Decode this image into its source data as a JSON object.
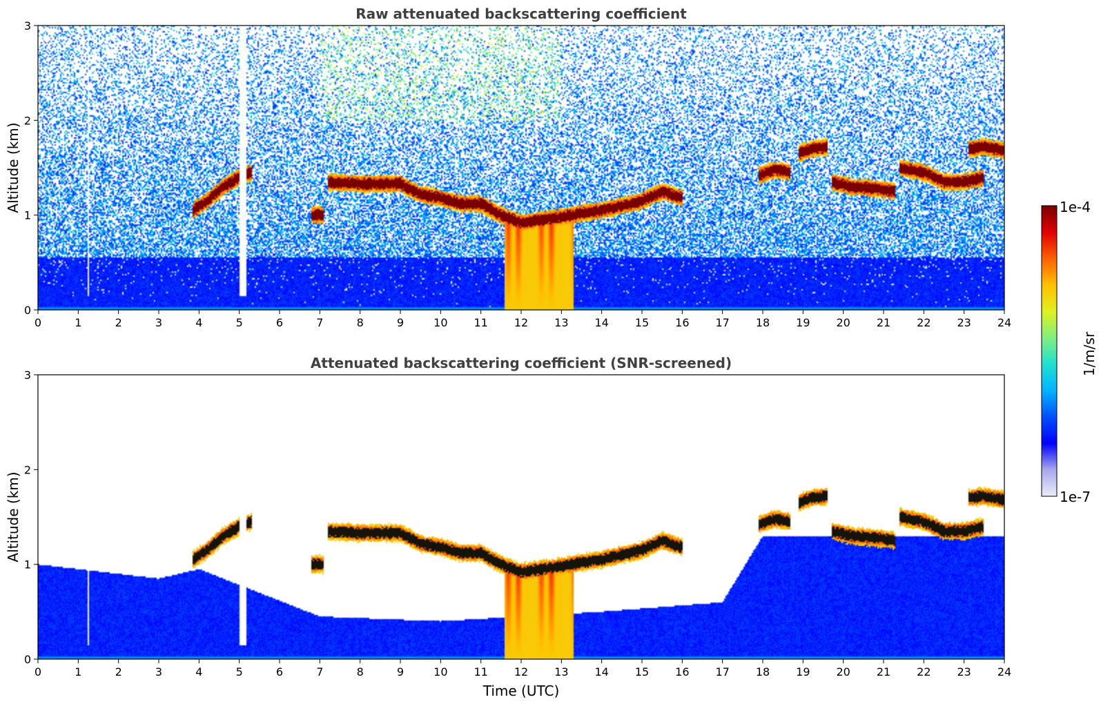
{
  "chart_data": [
    {
      "type": "heatmap",
      "title": "Raw attenuated backscattering coefficient",
      "xlabel": "",
      "ylabel": "Altitude (km)",
      "xlim": [
        0,
        24
      ],
      "ylim": [
        0,
        3
      ],
      "x_ticks": [
        "0",
        "1",
        "2",
        "3",
        "4",
        "5",
        "6",
        "7",
        "8",
        "9",
        "10",
        "11",
        "12",
        "13",
        "14",
        "15",
        "16",
        "17",
        "18",
        "19",
        "20",
        "21",
        "22",
        "23",
        "24"
      ],
      "y_ticks": [
        "0",
        "1",
        "2",
        "3"
      ],
      "screening": "none",
      "background": {
        "surface_value": "1e-6",
        "top_value": "3e-6",
        "noise": "high"
      },
      "cloud_layers": [
        {
          "t": [
            3.85,
            4.2,
            4.6,
            5.0,
            5.3
          ],
          "alt": [
            1.05,
            1.15,
            1.3,
            1.4,
            1.45
          ],
          "intensity": "1e-4"
        },
        {
          "t": [
            6.8,
            7.1
          ],
          "alt": [
            1.0,
            1.0
          ],
          "intensity": "1e-4"
        },
        {
          "t": [
            7.2,
            8.0,
            9.0,
            9.5,
            10.0,
            10.5,
            11.0,
            11.5,
            12.0,
            12.5,
            13.0,
            13.5,
            14.0,
            14.5,
            15.0,
            15.5,
            16.0
          ],
          "alt": [
            1.35,
            1.33,
            1.33,
            1.22,
            1.18,
            1.12,
            1.12,
            1.0,
            0.92,
            0.95,
            0.98,
            1.02,
            1.05,
            1.1,
            1.15,
            1.25,
            1.18
          ],
          "intensity": "1e-4"
        },
        {
          "t": [
            17.9,
            18.3,
            18.7
          ],
          "alt": [
            1.42,
            1.48,
            1.45
          ],
          "intensity": "1e-4"
        },
        {
          "t": [
            18.9,
            19.2,
            19.6
          ],
          "alt": [
            1.65,
            1.7,
            1.72
          ],
          "intensity": "1e-4"
        },
        {
          "t": [
            19.7,
            20.2,
            20.8,
            21.3
          ],
          "alt": [
            1.35,
            1.3,
            1.28,
            1.25
          ],
          "intensity": "1e-4"
        },
        {
          "t": [
            21.4,
            22.0,
            22.5,
            23.0,
            23.5
          ],
          "alt": [
            1.5,
            1.45,
            1.35,
            1.35,
            1.4
          ],
          "intensity": "1e-4"
        },
        {
          "t": [
            23.1,
            23.5,
            24.0
          ],
          "alt": [
            1.7,
            1.72,
            1.68
          ],
          "intensity": "1e-4"
        }
      ],
      "precipitation_shafts": [
        {
          "t_start": 11.6,
          "t_end": 13.3,
          "from_alt": 0.9,
          "to_alt": 0.0
        }
      ],
      "blanked_columns": [
        1.25,
        5.1
      ]
    },
    {
      "type": "heatmap",
      "title": "Attenuated backscattering coefficient (SNR-screened)",
      "xlabel": "Time (UTC)",
      "ylabel": "Altitude (km)",
      "xlim": [
        0,
        24
      ],
      "ylim": [
        0,
        3
      ],
      "x_ticks": [
        "0",
        "1",
        "2",
        "3",
        "4",
        "5",
        "6",
        "7",
        "8",
        "9",
        "10",
        "11",
        "12",
        "13",
        "14",
        "15",
        "16",
        "17",
        "18",
        "19",
        "20",
        "21",
        "22",
        "23",
        "24"
      ],
      "y_ticks": [
        "0",
        "1",
        "2",
        "3"
      ],
      "screening": "SNR",
      "boundary_layer_top": {
        "t": [
          0,
          3,
          4,
          7,
          10,
          12,
          14,
          17,
          18,
          24
        ],
        "alt": [
          1.0,
          0.85,
          0.95,
          0.45,
          0.4,
          0.45,
          0.5,
          0.6,
          1.3,
          1.3
        ]
      }
    }
  ],
  "colorbar": {
    "label": "1/m/sr",
    "max_label": "1e-4",
    "min_label": "1e-7",
    "stops": [
      "#ececf8",
      "#a8a8ee",
      "#0000ff",
      "#0050ff",
      "#00b4ff",
      "#20e0d0",
      "#80f080",
      "#e0f020",
      "#ffc000",
      "#ff6000",
      "#e00000",
      "#7a0000"
    ]
  },
  "colors": {
    "text": "#000000",
    "title": "#404040",
    "frame": "#000000"
  }
}
